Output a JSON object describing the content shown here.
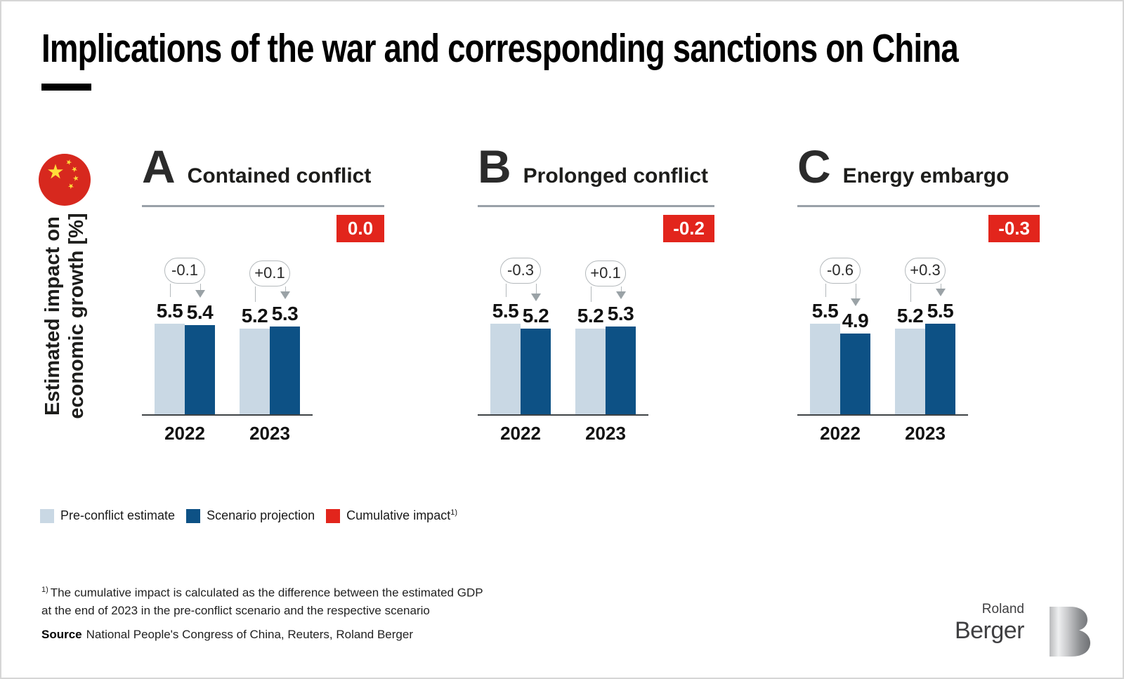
{
  "title": "Implications of the war and corresponding sanctions on China",
  "y_axis": {
    "lines": [
      "Estimated impact on",
      "economic growth [%]"
    ]
  },
  "colors": {
    "pre_conflict": "#c9d8e4",
    "scenario_projection": "#0d5185",
    "cumulative_impact": "#e2251c",
    "header_rule": "#99a1a8",
    "flag_red": "#d7281e",
    "flag_yellow": "#fede3a"
  },
  "chart_data": [
    {
      "type": "bar",
      "panel_letter": "A",
      "title": "Contained conflict",
      "cumulative_impact": "0.0",
      "categories": [
        "2022",
        "2023"
      ],
      "series": [
        {
          "name": "Pre-conflict estimate",
          "values": [
            5.5,
            5.2
          ]
        },
        {
          "name": "Scenario projection",
          "values": [
            5.4,
            5.3
          ]
        }
      ],
      "deltas": [
        "-0.1",
        "+0.1"
      ],
      "ylim": [
        0,
        6
      ],
      "grid": false
    },
    {
      "type": "bar",
      "panel_letter": "B",
      "title": "Prolonged conflict",
      "cumulative_impact": "-0.2",
      "categories": [
        "2022",
        "2023"
      ],
      "series": [
        {
          "name": "Pre-conflict estimate",
          "values": [
            5.5,
            5.2
          ]
        },
        {
          "name": "Scenario projection",
          "values": [
            5.2,
            5.3
          ]
        }
      ],
      "deltas": [
        "-0.3",
        "+0.1"
      ],
      "ylim": [
        0,
        6
      ],
      "grid": false
    },
    {
      "type": "bar",
      "panel_letter": "C",
      "title": "Energy embargo",
      "cumulative_impact": "-0.3",
      "categories": [
        "2022",
        "2023"
      ],
      "series": [
        {
          "name": "Pre-conflict estimate",
          "values": [
            5.5,
            5.2
          ]
        },
        {
          "name": "Scenario projection",
          "values": [
            4.9,
            5.5
          ]
        }
      ],
      "deltas": [
        "-0.6",
        "+0.3"
      ],
      "ylim": [
        0,
        6
      ],
      "grid": false
    }
  ],
  "legend": {
    "position": "bottom-left",
    "items": [
      {
        "label": "Pre-conflict estimate",
        "color": "#c9d8e4"
      },
      {
        "label": "Scenario projection",
        "color": "#0d5185"
      },
      {
        "label": "Cumulative impact",
        "color": "#e2251c",
        "sup": "1)"
      }
    ]
  },
  "footnote": {
    "marker": "1)",
    "lines": [
      "The cumulative impact is calculated as the difference between the estimated GDP",
      "at the end of 2023 in the pre-conflict scenario and the respective scenario"
    ]
  },
  "source": {
    "label": "Source",
    "text": "National People's Congress of China, Reuters, Roland Berger"
  },
  "logo": {
    "top": "Roland",
    "bottom": "Berger"
  }
}
